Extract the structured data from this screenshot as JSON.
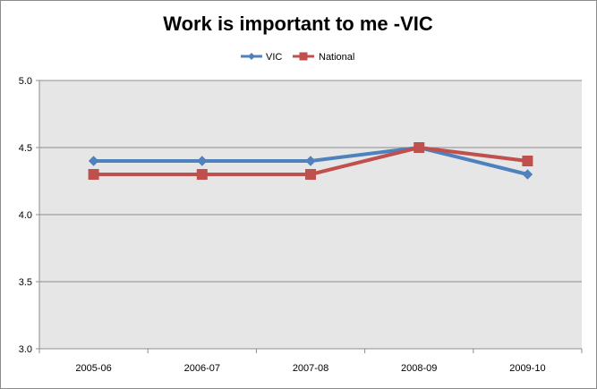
{
  "chart_data": {
    "type": "line",
    "title": "Work is important to me -VIC",
    "xlabel": "",
    "ylabel": "",
    "categories": [
      "2005-06",
      "2006-07",
      "2007-08",
      "2008-09",
      "2009-10"
    ],
    "ylim": [
      3.0,
      5.0
    ],
    "yticks": [
      "3.0",
      "3.5",
      "4.0",
      "4.5",
      "5.0"
    ],
    "grid": true,
    "legend_position": "top",
    "plot_background": "#e6e6e6",
    "series": [
      {
        "name": "VIC",
        "values": [
          4.4,
          4.4,
          4.4,
          4.5,
          4.3
        ],
        "color": "#4f81bd",
        "marker": "diamond"
      },
      {
        "name": "National",
        "values": [
          4.3,
          4.3,
          4.3,
          4.5,
          4.4
        ],
        "color": "#c0504d",
        "marker": "square"
      }
    ]
  }
}
